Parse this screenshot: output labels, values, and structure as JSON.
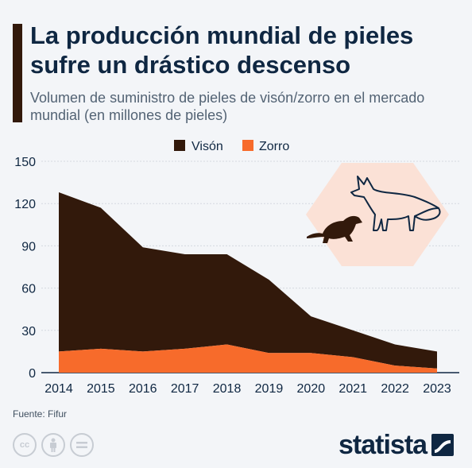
{
  "title": "La producción mundial de pieles sufre un drástico descenso",
  "subtitle": "Volumen de suministro de pieles de visón/zorro en el mercado mundial (en millones de pieles)",
  "source": "Fuente: Fifur",
  "brand": "statista",
  "icons": [
    "creative-commons-icon",
    "person-icon",
    "equal-icon",
    "fox-icon",
    "mink-icon"
  ],
  "colors": {
    "vison": "#32190b",
    "zorro": "#f76b2b",
    "title": "#0f2742",
    "badge": "#fbe1d6"
  },
  "chart_data": {
    "type": "area",
    "stacked": true,
    "x": [
      "2014",
      "2015",
      "2016",
      "2017",
      "2018",
      "2019",
      "2020",
      "2021",
      "2022",
      "2023"
    ],
    "series": [
      {
        "name": "Visón",
        "color": "#32190b",
        "values": [
          113,
          100,
          74,
          67,
          64,
          52,
          26,
          19,
          15,
          12
        ]
      },
      {
        "name": "Zorro",
        "color": "#f76b2b",
        "values": [
          15,
          17,
          15,
          17,
          20,
          14,
          14,
          11,
          5,
          3
        ]
      }
    ],
    "totals": [
      128,
      117,
      89,
      84,
      84,
      66,
      40,
      30,
      20,
      15
    ],
    "yticks": [
      0,
      30,
      60,
      90,
      120,
      150
    ],
    "ylim": [
      0,
      150
    ],
    "legend_position": "top-center",
    "grid": true
  }
}
